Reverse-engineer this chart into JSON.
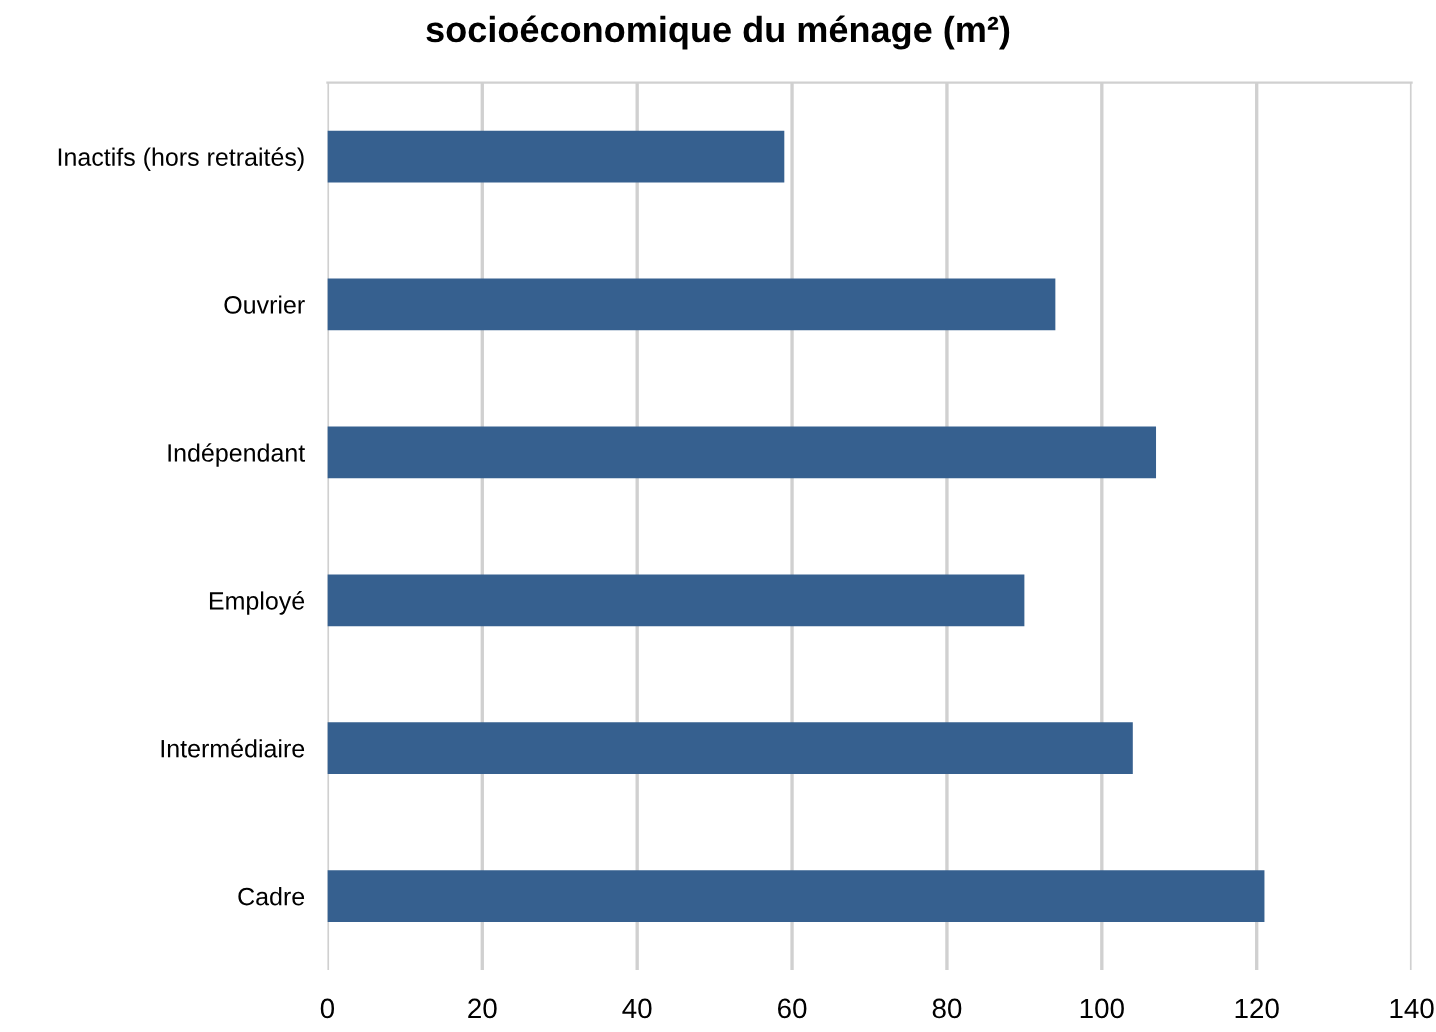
{
  "chart_data": {
    "type": "bar",
    "orientation": "horizontal",
    "title": "socioéconomique du ménage (m²)",
    "categories": [
      "Inactifs (hors retraités)",
      "Ouvrier",
      "Indépendant",
      "Employé",
      "Intermédiaire",
      "Cadre"
    ],
    "values": [
      59,
      94,
      107,
      90,
      104,
      121
    ],
    "color": "#36608f",
    "xlim": [
      0,
      140
    ],
    "xticks": [
      0,
      20,
      40,
      60,
      80,
      100,
      120,
      140
    ],
    "grid": "x"
  }
}
